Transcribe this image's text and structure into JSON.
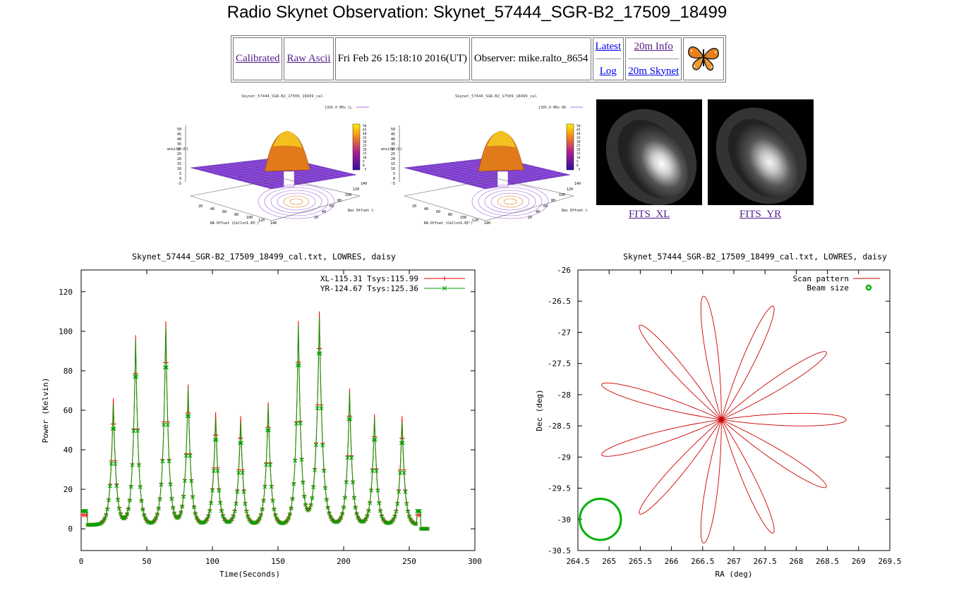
{
  "page": {
    "title": "Radio Skynet Observation: Skynet_57444_SGR-B2_17509_18499"
  },
  "nav": {
    "calibrated": "Calibrated",
    "raw_ascii": "Raw Ascii",
    "date": "Fri Feb 26 15:18:10 2016(UT)",
    "observer": "Observer: mike.ralto_8654",
    "latest": "Latest",
    "log": "Log",
    "info": "20m Info",
    "skynet": "20m Skynet",
    "logo_icon": "butterfly-icon"
  },
  "thumbnails": {
    "left": {
      "title": "Skynet_57444_SGR-B2_17509_18499_cal",
      "legend": "1395.0 MHz LL",
      "zlabel": "ensity (K)",
      "xlabel": "RA Offset (Cells=1.65')",
      "ylabel": "Dec Offset (cells)"
    },
    "right": {
      "title": "Skynet_57444_SGR-B2_17509_18499_cal",
      "legend": "1395.0 MHz RR",
      "zlabel": "ensity (K)",
      "xlabel": "RA Offset (Cells=1.65')",
      "ylabel": "Dec Offset (cells)"
    },
    "colorbar_ticks": [
      "50",
      "45",
      "40",
      "35",
      "30",
      "25",
      "20",
      "15",
      "10",
      "5",
      "0",
      "-5"
    ],
    "z_ticks": [
      "50",
      "45",
      "40",
      "35",
      "30",
      "25",
      "20",
      "15",
      "10",
      "5",
      "0",
      "-5"
    ],
    "x_ticks": [
      "20",
      "40",
      "60",
      "80",
      "100",
      "120",
      "140"
    ],
    "y_ticks": [
      "20",
      "40",
      "60",
      "80",
      "100",
      "120",
      "140"
    ]
  },
  "fits": {
    "xl": "FITS_XL",
    "yr": "FITS_YR"
  },
  "chart_data": [
    {
      "type": "line",
      "title": "Skynet_57444_SGR-B2_17509_18499_cal.txt, LOWRES, daisy",
      "xlabel": "Time(Seconds)",
      "ylabel": "Power (Kelvin)",
      "xlim": [
        0,
        300
      ],
      "ylim": [
        -11,
        131
      ],
      "xticks": [
        0,
        50,
        100,
        150,
        200,
        250,
        300
      ],
      "yticks": [
        0,
        20,
        40,
        60,
        80,
        100,
        120
      ],
      "legend_position": "top-right",
      "grid": false,
      "peaks": {
        "times": [
          24.5,
          41.5,
          64.5,
          81.5,
          102.5,
          121.5,
          142.5,
          165.5,
          181.5,
          204.5,
          223.5,
          244.5
        ],
        "xl": [
          66,
          98,
          105,
          73,
          59,
          57,
          64,
          105,
          110,
          71,
          58,
          57
        ],
        "yr": [
          63,
          96,
          102,
          71,
          56,
          54,
          62,
          103,
          107,
          69,
          56,
          54
        ]
      },
      "series": [
        {
          "name": "XL-115.31 Tsys:115.99",
          "color": "#ff0000",
          "marker": "plus",
          "baseline": 2,
          "start_level": 7,
          "end_level": 0
        },
        {
          "name": "YR-124.67 Tsys:125.36",
          "color": "#00a000",
          "marker": "cross",
          "baseline": 2,
          "start_level": 9,
          "end_level": 0
        }
      ]
    },
    {
      "type": "line",
      "title": "Skynet_57444_SGR-B2_17509_18499_cal.txt, LOWRES, daisy",
      "xlabel": "RA (deg)",
      "ylabel": "Dec (deg)",
      "xlim": [
        264.5,
        269.5
      ],
      "ylim": [
        -30.5,
        -26
      ],
      "xticks": [
        264.5,
        265,
        265.5,
        266,
        266.5,
        267,
        267.5,
        268,
        268.5,
        269,
        269.5
      ],
      "yticks": [
        -26,
        -26.5,
        -27,
        -27.5,
        -28,
        -28.5,
        -29,
        -29.5,
        -30,
        -30.5
      ],
      "legend_position": "top-right",
      "grid": false,
      "series": [
        {
          "name": "Scan pattern",
          "color": "#cc0000",
          "center": [
            266.8,
            -28.4
          ],
          "petals": 11,
          "radius_deg": 2.0
        },
        {
          "name": "Beam size",
          "color": "#00b000",
          "center": [
            264.86,
            -30.0
          ],
          "radius_deg": 0.33
        }
      ]
    }
  ]
}
